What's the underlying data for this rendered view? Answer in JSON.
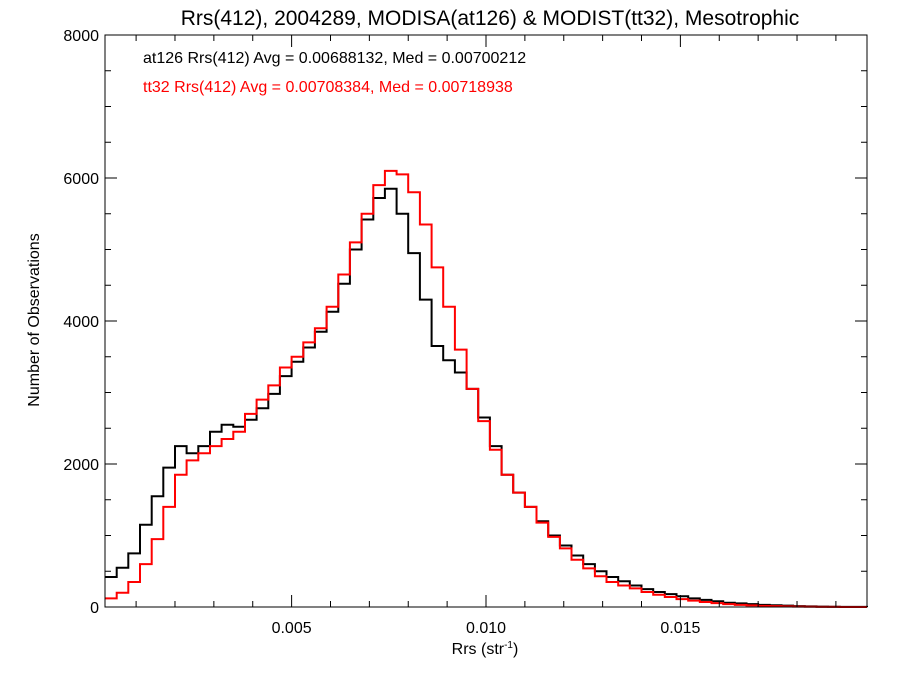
{
  "chart_data": {
    "type": "line",
    "step": true,
    "title": "Rrs(412), 2004289, MODISA(at126) & MODIST(tt32), Mesotrophic",
    "xlabel": "Rrs (str",
    "xlabel_sup": "-1",
    "xlabel_close": ")",
    "ylabel": "Number of Observations",
    "xlim": [
      0.0002,
      0.0198
    ],
    "ylim": [
      0,
      8000
    ],
    "x_ticks": [
      {
        "value": 0.005,
        "label": "0.005"
      },
      {
        "value": 0.01,
        "label": "0.010"
      },
      {
        "value": 0.015,
        "label": "0.015"
      }
    ],
    "y_ticks": [
      {
        "value": 0,
        "label": "0"
      },
      {
        "value": 2000,
        "label": "2000"
      },
      {
        "value": 4000,
        "label": "4000"
      },
      {
        "value": 6000,
        "label": "6000"
      },
      {
        "value": 8000,
        "label": "8000"
      }
    ],
    "annotations": [
      {
        "text": "at126 Rrs(412) Avg = 0.00688132, Med = 0.00700212",
        "color": "#000000"
      },
      {
        "text": "tt32 Rrs(412) Avg = 0.00708384, Med = 0.00718938",
        "color": "#ff0000"
      }
    ],
    "series": [
      {
        "id": "at126",
        "color": "#000000",
        "x": [
          0.0002,
          0.0005,
          0.0008,
          0.0011,
          0.0014,
          0.0017,
          0.002,
          0.0023,
          0.0026,
          0.0029,
          0.0032,
          0.0035,
          0.0038,
          0.0041,
          0.0044,
          0.0047,
          0.005,
          0.0053,
          0.0056,
          0.0059,
          0.0062,
          0.0065,
          0.0068,
          0.0071,
          0.0074,
          0.0077,
          0.008,
          0.0083,
          0.0086,
          0.0089,
          0.0092,
          0.0095,
          0.0098,
          0.0101,
          0.0104,
          0.0107,
          0.011,
          0.0113,
          0.0116,
          0.0119,
          0.0122,
          0.0125,
          0.0128,
          0.0131,
          0.0134,
          0.0137,
          0.014,
          0.0143,
          0.0146,
          0.0149,
          0.0152,
          0.0155,
          0.0158,
          0.0161,
          0.0164,
          0.0167,
          0.017,
          0.0173,
          0.0176,
          0.0179,
          0.0182,
          0.0185,
          0.0188,
          0.0191,
          0.0194,
          0.0198
        ],
        "y": [
          420,
          550,
          750,
          1150,
          1550,
          1950,
          2250,
          2150,
          2250,
          2450,
          2550,
          2520,
          2620,
          2780,
          2980,
          3230,
          3430,
          3630,
          3850,
          4130,
          4520,
          5000,
          5420,
          5720,
          5850,
          5500,
          4950,
          4300,
          3650,
          3450,
          3280,
          3050,
          2650,
          2250,
          1850,
          1600,
          1400,
          1200,
          1000,
          860,
          720,
          600,
          500,
          420,
          360,
          300,
          250,
          210,
          180,
          150,
          120,
          100,
          80,
          60,
          50,
          40,
          30,
          25,
          20,
          12,
          8,
          6,
          4,
          2,
          1,
          0
        ]
      },
      {
        "id": "tt32",
        "color": "#ff0000",
        "x": [
          0.0002,
          0.0005,
          0.0008,
          0.0011,
          0.0014,
          0.0017,
          0.002,
          0.0023,
          0.0026,
          0.0029,
          0.0032,
          0.0035,
          0.0038,
          0.0041,
          0.0044,
          0.0047,
          0.005,
          0.0053,
          0.0056,
          0.0059,
          0.0062,
          0.0065,
          0.0068,
          0.0071,
          0.0074,
          0.0077,
          0.008,
          0.0083,
          0.0086,
          0.0089,
          0.0092,
          0.0095,
          0.0098,
          0.0101,
          0.0104,
          0.0107,
          0.011,
          0.0113,
          0.0116,
          0.0119,
          0.0122,
          0.0125,
          0.0128,
          0.0131,
          0.0134,
          0.0137,
          0.014,
          0.0143,
          0.0146,
          0.0149,
          0.0152,
          0.0155,
          0.0158,
          0.0161,
          0.0164,
          0.0167,
          0.017,
          0.0173,
          0.0176,
          0.0179,
          0.0182,
          0.0185,
          0.0188,
          0.0191,
          0.0194,
          0.0198
        ],
        "y": [
          120,
          200,
          350,
          600,
          950,
          1400,
          1850,
          2050,
          2150,
          2250,
          2350,
          2450,
          2700,
          2900,
          3100,
          3350,
          3500,
          3700,
          3900,
          4200,
          4650,
          5100,
          5500,
          5900,
          6100,
          6050,
          5800,
          5350,
          4750,
          4200,
          3600,
          3050,
          2600,
          2200,
          1850,
          1600,
          1400,
          1180,
          980,
          820,
          660,
          540,
          430,
          350,
          300,
          260,
          210,
          170,
          140,
          110,
          90,
          70,
          55,
          40,
          30,
          22,
          16,
          12,
          8,
          6,
          4,
          2,
          1,
          0,
          0,
          0
        ]
      }
    ]
  }
}
